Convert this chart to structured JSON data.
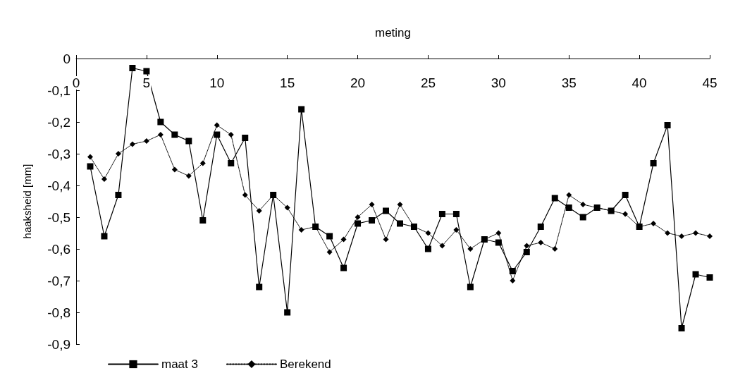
{
  "chart_data": {
    "type": "line",
    "xlabel": "meting",
    "ylabel": "haaksheid [mm]",
    "x": [
      1,
      2,
      3,
      4,
      5,
      6,
      7,
      8,
      9,
      10,
      11,
      12,
      13,
      14,
      15,
      16,
      17,
      18,
      19,
      20,
      21,
      22,
      23,
      24,
      25,
      26,
      27,
      28,
      29,
      30,
      31,
      32,
      33,
      34,
      35,
      36,
      37,
      38,
      39,
      40,
      41,
      42,
      43,
      44,
      45
    ],
    "series": [
      {
        "name": "maat 3",
        "color": "#000000",
        "marker": "square",
        "line_style": "solid",
        "values": [
          -0.34,
          -0.56,
          -0.43,
          -0.03,
          -0.04,
          -0.2,
          -0.24,
          -0.26,
          -0.51,
          -0.24,
          -0.33,
          -0.25,
          -0.72,
          -0.43,
          -0.8,
          -0.16,
          -0.53,
          -0.56,
          -0.66,
          -0.52,
          -0.51,
          -0.48,
          -0.52,
          -0.53,
          -0.6,
          -0.49,
          -0.49,
          -0.72,
          -0.57,
          -0.58,
          -0.67,
          -0.61,
          -0.53,
          -0.44,
          -0.47,
          -0.5,
          -0.47,
          -0.48,
          -0.43,
          -0.53,
          -0.33,
          -0.21,
          -0.85,
          -0.68,
          -0.69
        ]
      },
      {
        "name": "Berekend",
        "color": "#000000",
        "marker": "diamond",
        "line_style": "dotted",
        "values": [
          -0.31,
          -0.38,
          -0.3,
          -0.27,
          -0.26,
          -0.24,
          -0.35,
          -0.37,
          -0.33,
          -0.21,
          -0.24,
          -0.43,
          -0.48,
          -0.43,
          -0.47,
          -0.54,
          -0.53,
          -0.61,
          -0.57,
          -0.5,
          -0.46,
          -0.57,
          -0.46,
          -0.53,
          -0.55,
          -0.59,
          -0.54,
          -0.6,
          -0.57,
          -0.55,
          -0.7,
          -0.59,
          -0.58,
          -0.6,
          -0.43,
          -0.46,
          -0.47,
          -0.48,
          -0.49,
          -0.53,
          -0.52,
          -0.55,
          -0.56,
          -0.55,
          -0.56
        ]
      }
    ],
    "xlim": [
      0,
      45
    ],
    "xticks": [
      0,
      5,
      10,
      15,
      20,
      25,
      30,
      35,
      40,
      45
    ],
    "ylim": [
      -0.9,
      0
    ],
    "yticks": [
      {
        "value": -0.9,
        "label": "-0,9"
      },
      {
        "value": -0.8,
        "label": "-0,8"
      },
      {
        "value": -0.7,
        "label": "-0,7"
      },
      {
        "value": -0.6,
        "label": "-0,6"
      },
      {
        "value": -0.5,
        "label": "-0,5"
      },
      {
        "value": -0.4,
        "label": "-0,4"
      },
      {
        "value": -0.3,
        "label": "-0,3"
      },
      {
        "value": -0.2,
        "label": "-0,2"
      },
      {
        "value": -0.1,
        "label": "-0,1"
      },
      0
    ],
    "grid": false,
    "legend": "bottom left"
  }
}
